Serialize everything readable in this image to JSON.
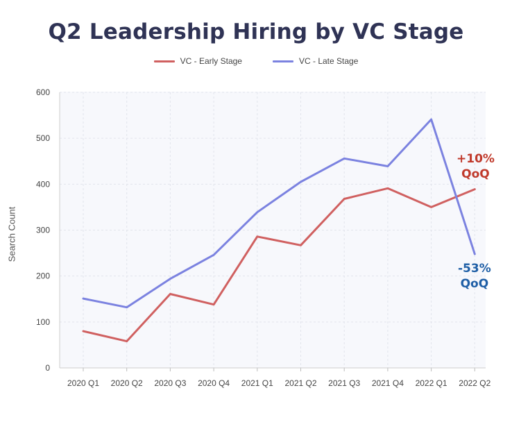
{
  "chart_data": {
    "type": "line",
    "title": "Q2 Leadership Hiring by VC Stage",
    "xlabel": "",
    "ylabel": "Search Count",
    "ylim": [
      0,
      600
    ],
    "yticks": [
      0,
      100,
      200,
      300,
      400,
      500,
      600
    ],
    "grid": true,
    "legend_position": "top-center",
    "categories": [
      "2020 Q1",
      "2020 Q2",
      "2020 Q3",
      "2020 Q4",
      "2021 Q1",
      "2021 Q2",
      "2021 Q3",
      "2021 Q4",
      "2022 Q1",
      "2022 Q2"
    ],
    "series": [
      {
        "name": "VC - Early Stage",
        "color": "#d06060",
        "values": [
          80,
          58,
          161,
          138,
          286,
          267,
          368,
          391,
          350,
          389
        ]
      },
      {
        "name": "VC - Late Stage",
        "color": "#7b82e0",
        "values": [
          151,
          132,
          194,
          246,
          339,
          405,
          456,
          439,
          541,
          248
        ]
      }
    ],
    "annotations": [
      {
        "series": "VC - Early Stage",
        "line1": "+10%",
        "line2": "QoQ",
        "color": "#c0392b"
      },
      {
        "series": "VC - Late Stage",
        "line1": "-53%",
        "line2": "QoQ",
        "color": "#1f5fa6"
      }
    ]
  }
}
